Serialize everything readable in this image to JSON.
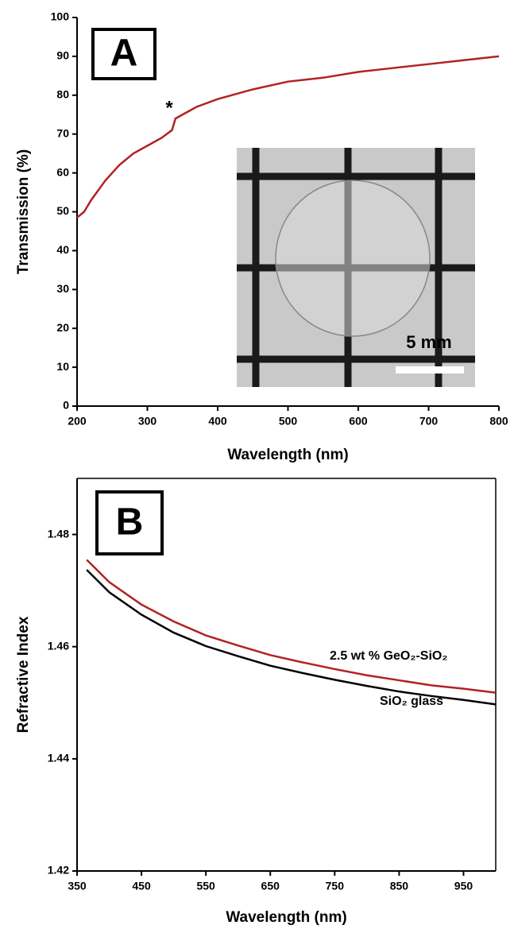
{
  "chart_data": [
    {
      "type": "line",
      "panel_label": "A",
      "xlabel": "Wavelength (nm)",
      "ylabel": "Transmission (%)",
      "x": [
        200,
        210,
        220,
        240,
        260,
        280,
        300,
        320,
        335,
        340,
        350,
        370,
        400,
        450,
        500,
        550,
        600,
        650,
        700,
        750,
        800
      ],
      "series": [
        {
          "color": "#b22222",
          "values": [
            48.5,
            50,
            53,
            58,
            62,
            65,
            67,
            69,
            71,
            74,
            75,
            77,
            79,
            81.5,
            83.5,
            84.5,
            86,
            87,
            88,
            89,
            90
          ]
        }
      ],
      "xlim": [
        200,
        800
      ],
      "xticks": [
        200,
        300,
        400,
        500,
        600,
        700,
        800
      ],
      "ylim": [
        0,
        100
      ],
      "yticks": [
        0,
        10,
        20,
        30,
        40,
        50,
        60,
        70,
        80,
        90,
        100
      ],
      "annotations": [
        "*",
        "5 mm"
      ]
    },
    {
      "type": "line",
      "panel_label": "B",
      "xlabel": "Wavelength (nm)",
      "ylabel": "Refractive Index",
      "x": [
        365,
        400,
        450,
        500,
        550,
        600,
        650,
        700,
        750,
        800,
        850,
        900,
        950,
        1000
      ],
      "series": [
        {
          "name": "2.5 wt % GeO₂-SiO₂",
          "color": "#b22222",
          "values": [
            1.4755,
            1.4715,
            1.4675,
            1.4645,
            1.462,
            1.4602,
            1.4585,
            1.4572,
            1.456,
            1.4549,
            1.454,
            1.4531,
            1.4525,
            1.4518
          ]
        },
        {
          "name": "SiO₂ glass",
          "color": "#000000",
          "values": [
            1.4737,
            1.4697,
            1.4657,
            1.4625,
            1.4601,
            1.4583,
            1.4566,
            1.4553,
            1.4541,
            1.453,
            1.452,
            1.4512,
            1.4505,
            1.4497
          ]
        }
      ],
      "xlim": [
        350,
        1000
      ],
      "xticks": [
        350,
        450,
        550,
        650,
        750,
        850,
        950
      ],
      "ylim": [
        1.42,
        1.49
      ],
      "yticks": [
        1.42,
        1.44,
        1.46,
        1.48
      ]
    }
  ]
}
